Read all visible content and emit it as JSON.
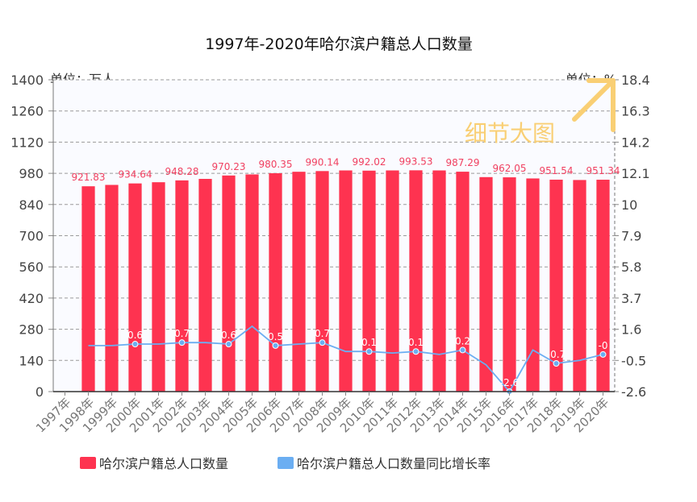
{
  "chart_data": {
    "type": "bar",
    "title": "1997年-2020年哈尔滨户籍总人口数量",
    "left_unit": "单位：万人",
    "right_unit": "单位：%",
    "categories": [
      "1997年",
      "1998年",
      "1999年",
      "2000年",
      "2001年",
      "2002年",
      "2003年",
      "2004年",
      "2005年",
      "2006年",
      "2007年",
      "2008年",
      "2009年",
      "2010年",
      "2011年",
      "2012年",
      "2013年",
      "2014年",
      "2015年",
      "2016年",
      "2017年",
      "2018年",
      "2019年",
      "2020年"
    ],
    "series": [
      {
        "name": "哈尔滨户籍总人口数量",
        "type": "bar",
        "axis": "left",
        "color": "#fe3350",
        "values": [
          null,
          921.83,
          928.0,
          934.64,
          940.0,
          948.28,
          955.0,
          970.23,
          975.0,
          980.35,
          987.0,
          990.14,
          993.0,
          992.02,
          993.0,
          993.53,
          993.0,
          987.29,
          963.0,
          962.05,
          957.0,
          951.54,
          950.0,
          951.34
        ],
        "data_labels": [
          "",
          "921.83",
          "",
          "934.64",
          "",
          "948.28",
          "",
          "970.23",
          "",
          "980.35",
          "",
          "990.14",
          "",
          "992.02",
          "",
          "993.53",
          "",
          "987.29",
          "",
          "962.05",
          "",
          "951.54",
          "",
          "951.34"
        ]
      },
      {
        "name": "哈尔滨户籍总人口数量同比增长率",
        "type": "line",
        "axis": "right",
        "color": "#6baef2",
        "values": [
          null,
          0.5,
          0.5,
          0.6,
          0.6,
          0.7,
          0.7,
          0.6,
          1.8,
          0.5,
          0.6,
          0.7,
          0.1,
          0.1,
          0.0,
          0.1,
          -0.1,
          0.2,
          -0.8,
          -2.6,
          0.2,
          -0.7,
          -0.5,
          -0.1
        ],
        "data_labels": [
          "",
          "",
          "",
          "0.6",
          "",
          "0.7",
          "",
          "0.6",
          "",
          "0.5",
          "",
          "0.7",
          "",
          "0.1",
          "",
          "0.1",
          "",
          "0.2",
          "",
          "-2.6",
          "",
          "-0.7",
          "",
          "-0"
        ]
      }
    ],
    "left_axis": {
      "min": 0,
      "max": 1400,
      "ticks": [
        "0",
        "140",
        "280",
        "420",
        "560",
        "700",
        "840",
        "980",
        "1120",
        "1260",
        "1400"
      ]
    },
    "right_axis": {
      "min": -2.6,
      "max": 18.4,
      "ticks": [
        "-2.6",
        "-0.5",
        "1.6",
        "3.7",
        "5.8",
        "7.9",
        "10",
        "12.1",
        "14.2",
        "16.3",
        "18.4"
      ]
    },
    "grid": true,
    "legend": "bottom-left",
    "annotation": "细节大图"
  }
}
